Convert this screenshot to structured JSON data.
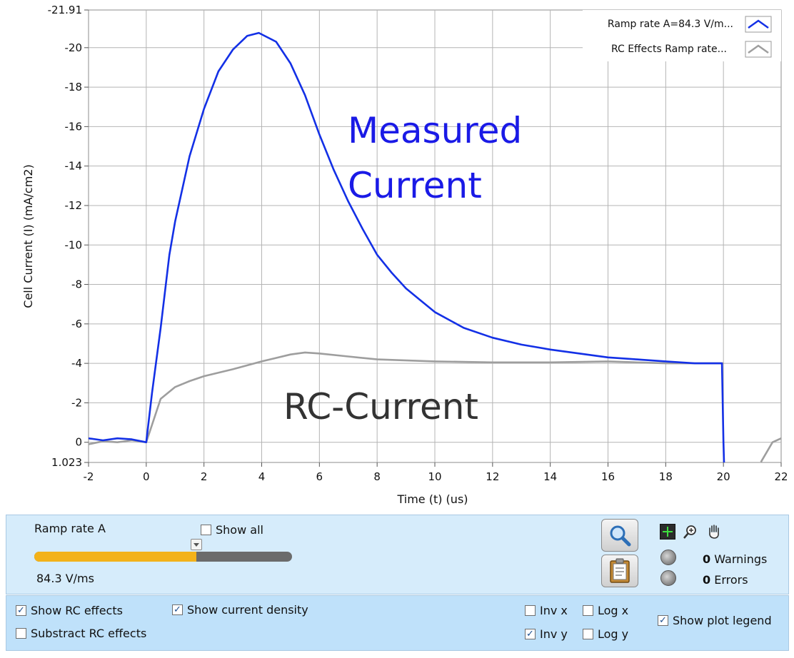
{
  "chart_data": {
    "type": "line",
    "xlabel": "Time (t) (us)",
    "ylabel": "Cell Current (I) (mA/cm2)",
    "xlim": [
      -2,
      22
    ],
    "ylim": [
      1.023,
      -21.91
    ],
    "y_inverted": true,
    "x_ticks": [
      "-2",
      "0",
      "2",
      "4",
      "6",
      "8",
      "10",
      "12",
      "14",
      "16",
      "18",
      "20",
      "22"
    ],
    "y_ticks": [
      "-21.91",
      "-20",
      "-18",
      "-16",
      "-14",
      "-12",
      "-10",
      "-8",
      "-6",
      "-4",
      "-2",
      "0",
      "1.023"
    ],
    "grid": true,
    "legend_position": "top-right",
    "annotations": [
      "Measured Current",
      "RC-Current"
    ],
    "series": [
      {
        "name": "Ramp rate A=84.3 V/m...",
        "color": "#1330e6",
        "x": [
          -2,
          -1.5,
          -1,
          -0.5,
          0,
          0.2,
          0.5,
          0.8,
          1,
          1.5,
          2,
          2.5,
          3,
          3.5,
          3.9,
          4.5,
          5,
          5.5,
          6,
          6.5,
          7,
          7.5,
          8,
          8.5,
          9,
          9.5,
          10,
          11,
          12,
          13,
          14,
          15,
          16,
          17,
          18,
          19,
          19.95,
          20,
          20.02
        ],
        "y": [
          -0.2,
          -0.1,
          -0.2,
          -0.15,
          0.0,
          -2.5,
          -5.8,
          -9.5,
          -11.2,
          -14.5,
          -16.9,
          -18.8,
          -19.9,
          -20.6,
          -20.75,
          -20.3,
          -19.2,
          -17.6,
          -15.6,
          -13.8,
          -12.2,
          -10.8,
          -9.5,
          -8.6,
          -7.8,
          -7.2,
          -6.6,
          -5.8,
          -5.3,
          -4.95,
          -4.7,
          -4.5,
          -4.3,
          -4.2,
          -4.1,
          -4.0,
          -4.0,
          0.0,
          1.023
        ]
      },
      {
        "name": "RC Effects Ramp rate...",
        "color": "#9e9e9e",
        "x": [
          -2,
          -1.5,
          -1,
          -0.5,
          0,
          0.5,
          1,
          1.5,
          2,
          3,
          4,
          5,
          5.5,
          6,
          7,
          8,
          10,
          12,
          14,
          16,
          18,
          20,
          21,
          21.3,
          21.7,
          22
        ],
        "y": [
          0.1,
          -0.05,
          0.0,
          -0.1,
          0.0,
          -2.2,
          -2.8,
          -3.1,
          -3.35,
          -3.7,
          -4.1,
          -4.45,
          -4.55,
          -4.5,
          -4.35,
          -4.2,
          -4.1,
          -4.05,
          -4.05,
          -4.1,
          -4.0,
          -4.0,
          null,
          1.0,
          0.0,
          -0.2
        ]
      }
    ]
  },
  "controls": {
    "ramp_label": "Ramp rate A",
    "show_all": "Show all",
    "ramp_value": "84.3 V/ms",
    "slider_fraction": 0.63,
    "warnings_count": "0",
    "warnings_label": "Warnings",
    "errors_count": "0",
    "errors_label": "Errors",
    "show_rc": "Show RC effects",
    "subtract_rc": "Substract RC effects",
    "show_density": "Show current density",
    "inv_x": "Inv x",
    "inv_y": "Inv y",
    "log_x": "Log x",
    "log_y": "Log y",
    "show_legend": "Show plot legend",
    "check": "✓"
  },
  "colors": {
    "accent_slider": "#f3b21a",
    "panel": "#d6ecfb",
    "panel_dark": "#bfe1fa"
  }
}
